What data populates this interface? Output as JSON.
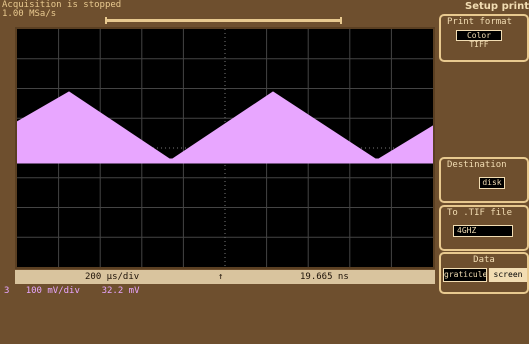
{
  "status": {
    "acquisition": "Acquisition is stopped",
    "sample_rate": "1.00 MSa/s"
  },
  "trace": {
    "color": "#e8a6ff",
    "background": "#000000"
  },
  "timebase": {
    "time_per_div": "200 µs/div",
    "trigger_marker": "↑",
    "delay": "19.665 ns"
  },
  "channel": {
    "number": "3",
    "volts_per_div": "100 mV/div",
    "offset": "32.2 mV"
  },
  "setup_print": {
    "title": "Setup print",
    "print_format": {
      "label": "Print format",
      "value": "Color TIFF"
    },
    "destination": {
      "label": "Destination",
      "value": "disk"
    },
    "to_tif_file": {
      "label": "To .TIF file",
      "value": "4GHZ"
    },
    "data": {
      "label": "Data",
      "options": [
        "graticule",
        "screen"
      ]
    }
  }
}
